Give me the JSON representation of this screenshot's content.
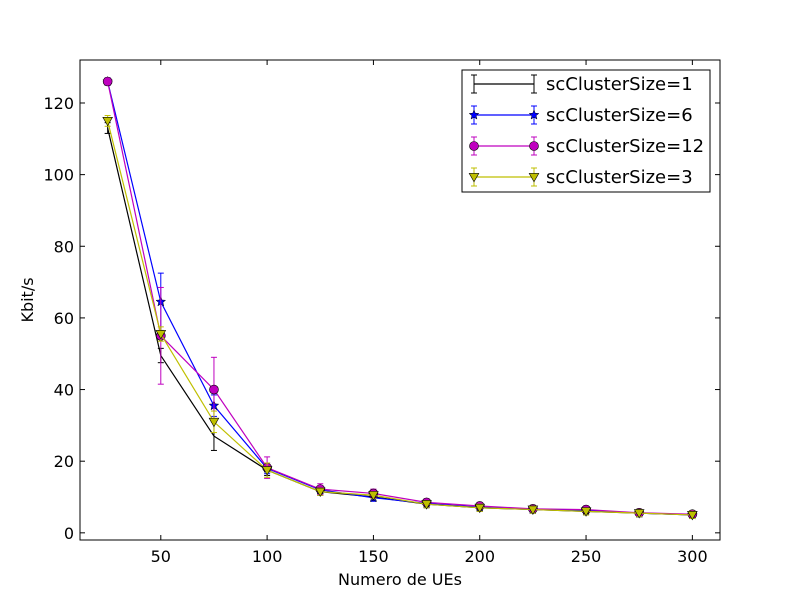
{
  "chart_data": {
    "type": "line",
    "title": "",
    "xlabel": "Numero de UEs",
    "ylabel": "Kbit/s",
    "xlim": [
      12,
      313
    ],
    "ylim": [
      -2,
      132
    ],
    "xticks": [
      50,
      100,
      150,
      200,
      250,
      300
    ],
    "yticks": [
      0,
      20,
      40,
      60,
      80,
      100,
      120
    ],
    "grid": false,
    "legend_position": "top-right",
    "x": [
      25,
      50,
      75,
      100,
      125,
      150,
      175,
      200,
      225,
      250,
      275,
      300
    ],
    "series": [
      {
        "name": "scClusterSize=1",
        "color": "#000000",
        "marker": "none",
        "values": [
          113,
          49.5,
          27,
          17.5,
          11.5,
          10,
          8,
          7,
          6.5,
          6,
          5.5,
          5
        ],
        "errors": [
          1.5,
          2,
          4,
          1.5,
          1,
          1,
          1,
          1,
          1,
          1,
          1,
          1
        ]
      },
      {
        "name": "scClusterSize=6",
        "color": "#0000ff",
        "marker": "star",
        "values": [
          126,
          64.5,
          35.5,
          18,
          12,
          9.8,
          8.2,
          7.2,
          6.5,
          6.3,
          5.5,
          5
        ],
        "errors": [
          1,
          8,
          3,
          1.5,
          1,
          1,
          1,
          1,
          1,
          1,
          1,
          1
        ]
      },
      {
        "name": "scClusterSize=12",
        "color": "#bf00bf",
        "marker": "circle",
        "values": [
          126,
          55,
          40,
          18.2,
          12.2,
          11,
          8.5,
          7.5,
          6.7,
          6.5,
          5.6,
          5.2
        ],
        "errors": [
          1,
          13.5,
          9,
          3,
          1.5,
          1.2,
          1,
          1,
          1,
          1,
          1,
          1
        ]
      },
      {
        "name": "scClusterSize=3",
        "color": "#bfbf00",
        "marker": "triangle-down",
        "values": [
          115,
          55.5,
          31,
          17.5,
          11.5,
          10.5,
          8,
          7,
          6.5,
          6,
          5.5,
          5
        ],
        "errors": [
          1.5,
          2,
          3,
          2,
          1,
          1,
          1,
          1,
          1,
          1,
          1,
          1
        ]
      }
    ]
  }
}
